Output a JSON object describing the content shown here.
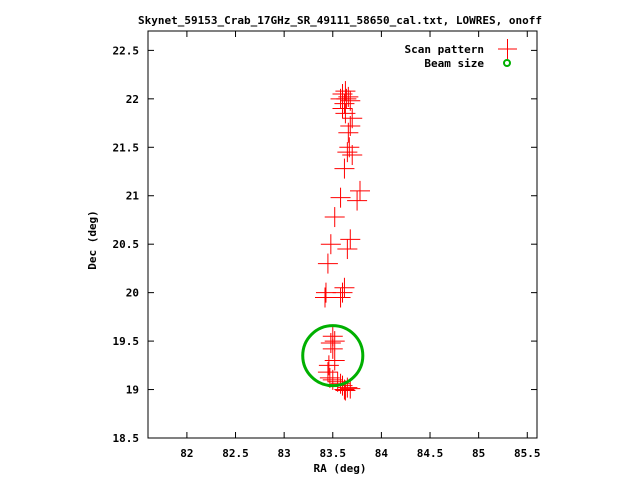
{
  "chart_data": {
    "type": "scatter",
    "title": "Skynet_59153_Crab_17GHz_SR_49111_58650_cal.txt, LOWRES, onoff",
    "xlabel": "RA (deg)",
    "ylabel": "Dec (deg)",
    "xlim": [
      81.6,
      85.6
    ],
    "ylim": [
      18.5,
      22.7
    ],
    "x_ticks": [
      "82",
      "82.5",
      "83",
      "83.5",
      "84",
      "84.5",
      "85",
      "85.5"
    ],
    "y_ticks": [
      "18.5",
      "19",
      "19.5",
      "20",
      "20.5",
      "21",
      "21.5",
      "22",
      "22.5"
    ],
    "grid": false,
    "legend_position": "top-right",
    "series": [
      {
        "name": "Scan pattern",
        "marker": "plus",
        "color": "#ff0000",
        "points": [
          [
            83.62,
            19.0
          ],
          [
            83.65,
            19.02
          ],
          [
            83.68,
            19.01
          ],
          [
            83.6,
            19.04
          ],
          [
            83.63,
            18.99
          ],
          [
            83.58,
            19.06
          ],
          [
            83.55,
            19.08
          ],
          [
            83.5,
            19.1
          ],
          [
            83.47,
            19.12
          ],
          [
            83.45,
            19.18
          ],
          [
            83.46,
            19.25
          ],
          [
            83.52,
            19.3
          ],
          [
            83.5,
            19.42
          ],
          [
            83.48,
            19.48
          ],
          [
            83.52,
            19.5
          ],
          [
            83.5,
            19.55
          ],
          [
            83.58,
            19.95
          ],
          [
            83.6,
            20.0
          ],
          [
            83.62,
            20.05
          ],
          [
            83.42,
            19.95
          ],
          [
            83.43,
            20.0
          ],
          [
            83.45,
            20.3
          ],
          [
            83.48,
            20.5
          ],
          [
            83.65,
            20.45
          ],
          [
            83.68,
            20.55
          ],
          [
            83.52,
            20.78
          ],
          [
            83.58,
            20.98
          ],
          [
            83.75,
            20.95
          ],
          [
            83.78,
            21.05
          ],
          [
            83.62,
            21.28
          ],
          [
            83.65,
            21.45
          ],
          [
            83.7,
            21.42
          ],
          [
            83.67,
            21.5
          ],
          [
            83.66,
            21.65
          ],
          [
            83.68,
            21.72
          ],
          [
            83.7,
            21.8
          ],
          [
            83.63,
            21.85
          ],
          [
            83.6,
            21.9
          ],
          [
            83.62,
            21.95
          ],
          [
            83.64,
            22.0
          ],
          [
            83.58,
            22.0
          ],
          [
            83.66,
            22.02
          ],
          [
            83.68,
            21.98
          ],
          [
            83.6,
            22.05
          ],
          [
            83.63,
            22.08
          ]
        ]
      },
      {
        "name": "Beam size",
        "marker": "circle",
        "color": "#00b000",
        "center": [
          83.5,
          19.35
        ],
        "radius_deg": 0.31
      }
    ]
  }
}
